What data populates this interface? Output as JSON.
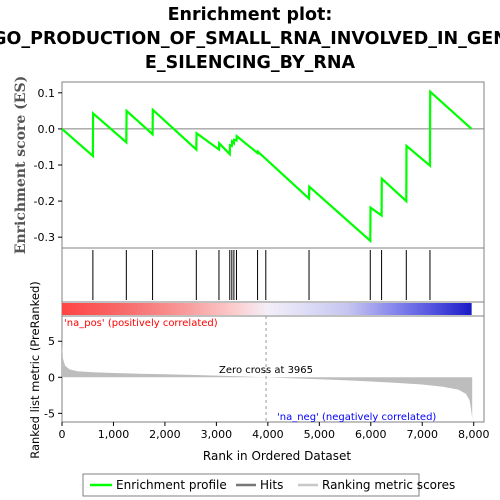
{
  "chart_data": {
    "type": "line",
    "title_lines": [
      "Enrichment plot:",
      "GO_PRODUCTION_OF_SMALL_RNA_INVOLVED_IN_GEN",
      "E_SILENCING_BY_RNA"
    ],
    "es_panel": {
      "ylabel": "Enrichment score (ES)",
      "ylim": [
        -0.33,
        0.13
      ],
      "yticks": [
        0.1,
        0.0,
        -0.1,
        -0.2,
        -0.3
      ],
      "ytick_labels": [
        "0.1",
        "0.0",
        "-0.1",
        "-0.2",
        "-0.3"
      ],
      "series": [
        {
          "name": "Enrichment profile",
          "color": "#00ff00",
          "x": [
            0,
            600,
            605,
            1250,
            1255,
            1760,
            1765,
            2610,
            2615,
            3050,
            3055,
            3260,
            3265,
            3300,
            3305,
            3340,
            3345,
            3390,
            3395,
            3800,
            3805,
            4800,
            4805,
            5990,
            5995,
            6210,
            6215,
            6690,
            6695,
            7150,
            7155,
            7960
          ],
          "y": [
            0.0,
            -0.075,
            0.043,
            -0.037,
            0.05,
            -0.015,
            0.053,
            -0.057,
            -0.012,
            -0.057,
            -0.04,
            -0.07,
            -0.045,
            -0.047,
            -0.035,
            -0.04,
            -0.03,
            -0.032,
            -0.02,
            -0.067,
            -0.063,
            -0.193,
            -0.16,
            -0.31,
            -0.218,
            -0.24,
            -0.138,
            -0.2,
            -0.047,
            -0.102,
            0.103,
            0.0
          ]
        }
      ]
    },
    "hits": {
      "name": "Hits",
      "x": [
        600,
        1250,
        1760,
        2610,
        3050,
        3260,
        3300,
        3340,
        3390,
        3800,
        3960,
        4800,
        5990,
        6210,
        6690,
        7150
      ]
    },
    "colorbar": {
      "pos_label": "'na_pos' (positively correlated)",
      "neg_label": "'na_neg' (negatively correlated)",
      "pos_color": "#ff0000",
      "neg_color": "#0000ff"
    },
    "metric_panel": {
      "ylabel": "Ranked list metric (PreRanked)",
      "ylim": [
        -6.2,
        8.5
      ],
      "yticks": [
        5,
        0,
        -5
      ],
      "ytick_labels": [
        "5",
        "0",
        "-5"
      ],
      "zero_cross_label": "Zero cross at 3965",
      "zero_cross_x": 3965,
      "profile": {
        "x": [
          0,
          20,
          60,
          150,
          300,
          600,
          1000,
          1500,
          2000,
          2500,
          3000,
          3500,
          3965,
          4500,
          5000,
          5500,
          6000,
          6500,
          7000,
          7400,
          7700,
          7850,
          7920,
          7950,
          7970
        ],
        "y": [
          4.8,
          2.6,
          1.6,
          1.1,
          0.85,
          0.7,
          0.6,
          0.5,
          0.42,
          0.33,
          0.24,
          0.12,
          0.0,
          -0.15,
          -0.28,
          -0.42,
          -0.58,
          -0.78,
          -1.0,
          -1.3,
          -1.7,
          -2.3,
          -3.2,
          -4.5,
          -5.7
        ]
      }
    },
    "xaxis": {
      "label": "Rank in Ordered Dataset",
      "xlim": [
        0,
        8200
      ],
      "ticks": [
        0,
        1000,
        2000,
        3000,
        4000,
        5000,
        6000,
        7000,
        8000
      ],
      "tick_labels": [
        "0",
        "1,000",
        "2,000",
        "3,000",
        "4,000",
        "5,000",
        "6,000",
        "7,000",
        "8,000"
      ],
      "data_max": 7960
    },
    "legend": [
      {
        "label": "Enrichment profile",
        "color": "#00ff00"
      },
      {
        "label": "Hits",
        "color": "#777777"
      },
      {
        "label": "Ranking metric scores",
        "color": "#c8c8c8"
      }
    ]
  }
}
